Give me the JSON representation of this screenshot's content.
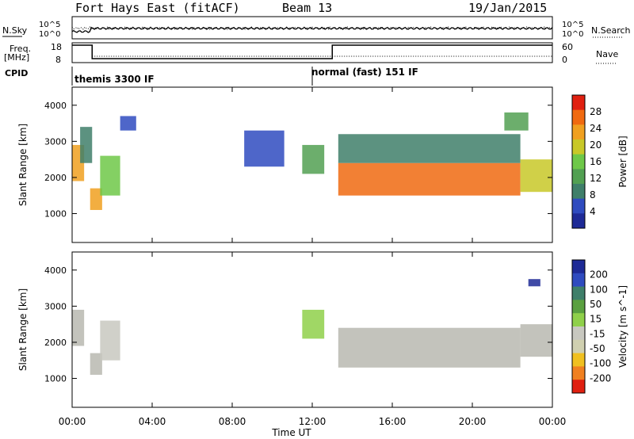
{
  "header": {
    "station": "Fort Hays East (fitACF)",
    "beam": "Beam 13",
    "date": "19/Jan/2015"
  },
  "top_panels": {
    "nsky_label": "N.Sky",
    "nsearch_label": "N.Search",
    "noise_ticks": [
      "10^5",
      "10^0"
    ],
    "freq_label_1": "Freq.",
    "freq_label_2": "[MHz]",
    "freq_ticks": [
      "18",
      "8"
    ],
    "nave_label": "Nave",
    "nave_ticks": [
      "60",
      "0"
    ],
    "cpid_label": "CPID",
    "cpid_segments": [
      "themis 3300 IF",
      "normal (fast) 151 IF"
    ]
  },
  "colors": {
    "power_scale": [
      "#1e2a96",
      "#2f4bbf",
      "#3f7f6a",
      "#52a052",
      "#6ec848",
      "#c8c828",
      "#f0a020",
      "#f06a10",
      "#e02010"
    ],
    "velocity_scale": [
      "#1e2a96",
      "#2f4bbf",
      "#3f7f6a",
      "#5aa040",
      "#8fd04a",
      "#c8c8c0",
      "#d0d0b0",
      "#f0c020",
      "#f08020",
      "#e02010"
    ],
    "ground_scatter": "#b8b8b0"
  },
  "chart_data": [
    {
      "type": "heatmap",
      "panel": "power",
      "ylabel": "Slant Range [km]",
      "xlabel": "Time UT",
      "xticks": [
        "00:00",
        "04:00",
        "08:00",
        "12:00",
        "16:00",
        "20:00",
        "00:00"
      ],
      "yticks": [
        "1000",
        "2000",
        "3000",
        "4000"
      ],
      "ylim": [
        200,
        4500
      ],
      "xlim_hours": [
        0,
        24
      ],
      "colorbar_label": "Power [dB]",
      "colorbar_ticks": [
        "4",
        "8",
        "12",
        "16",
        "20",
        "24",
        "28"
      ],
      "colorbar_range": [
        0,
        30
      ],
      "regions": [
        {
          "t0": 0.0,
          "t1": 0.6,
          "r0": 1900,
          "r1": 2900,
          "level": 20
        },
        {
          "t0": 0.4,
          "t1": 1.0,
          "r0": 2400,
          "r1": 3400,
          "level": 8
        },
        {
          "t0": 0.9,
          "t1": 1.5,
          "r0": 1100,
          "r1": 1700,
          "level": 22
        },
        {
          "t0": 1.4,
          "t1": 2.4,
          "r0": 1500,
          "r1": 2600,
          "level": 14
        },
        {
          "t0": 2.4,
          "t1": 3.2,
          "r0": 3300,
          "r1": 3700,
          "level": 6
        },
        {
          "t0": 8.6,
          "t1": 10.6,
          "r0": 2300,
          "r1": 3300,
          "level": 6
        },
        {
          "t0": 11.5,
          "t1": 12.6,
          "r0": 2100,
          "r1": 2900,
          "level": 10
        },
        {
          "t0": 13.3,
          "t1": 22.4,
          "r0": 1500,
          "r1": 2400,
          "level": 24
        },
        {
          "t0": 13.3,
          "t1": 22.4,
          "r0": 2400,
          "r1": 3200,
          "level": 8
        },
        {
          "t0": 22.4,
          "t1": 24.0,
          "r0": 1600,
          "r1": 2500,
          "level": 18
        },
        {
          "t0": 21.6,
          "t1": 22.8,
          "r0": 3300,
          "r1": 3800,
          "level": 10
        }
      ]
    },
    {
      "type": "heatmap",
      "panel": "velocity",
      "ylabel": "Slant Range [km]",
      "xlabel": "Time UT",
      "xticks": [
        "00:00",
        "04:00",
        "08:00",
        "12:00",
        "16:00",
        "20:00",
        "00:00"
      ],
      "yticks": [
        "1000",
        "2000",
        "3000",
        "4000"
      ],
      "ylim": [
        200,
        4500
      ],
      "xlim_hours": [
        0,
        24
      ],
      "colorbar_label": "Velocity [m s^-1]",
      "colorbar_ticks": [
        "200",
        "100",
        "50",
        "15",
        "-15",
        "-50",
        "-100",
        "-200"
      ],
      "colorbar_range": [
        -250,
        250
      ],
      "regions": [
        {
          "t0": 0.0,
          "t1": 0.6,
          "r0": 1900,
          "r1": 2900,
          "level": 0
        },
        {
          "t0": 0.9,
          "t1": 1.5,
          "r0": 1100,
          "r1": 1700,
          "level": 0
        },
        {
          "t0": 1.4,
          "t1": 2.4,
          "r0": 1500,
          "r1": 2600,
          "level": -30
        },
        {
          "t0": 11.5,
          "t1": 12.6,
          "r0": 2100,
          "r1": 2900,
          "level": 40
        },
        {
          "t0": 13.3,
          "t1": 22.4,
          "r0": 1300,
          "r1": 2400,
          "level": 0
        },
        {
          "t0": 22.4,
          "t1": 24.0,
          "r0": 1600,
          "r1": 2500,
          "level": 0
        },
        {
          "t0": 22.8,
          "t1": 23.4,
          "r0": 3550,
          "r1": 3750,
          "level": 220
        }
      ]
    }
  ]
}
